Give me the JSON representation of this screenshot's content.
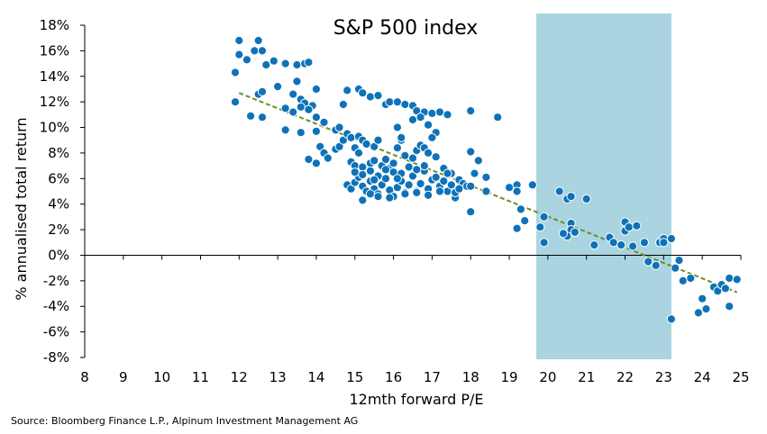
{
  "chart_data": {
    "type": "scatter",
    "title": "S&P 500 index",
    "xlabel": "12mth forward P/E",
    "ylabel": "% annualised total return",
    "xlim": [
      8,
      25
    ],
    "ylim": [
      -8,
      18
    ],
    "x_ticks": [
      8,
      9,
      10,
      11,
      12,
      13,
      14,
      15,
      16,
      17,
      18,
      19,
      20,
      21,
      22,
      23,
      24,
      25
    ],
    "y_ticks": [
      18,
      16,
      14,
      12,
      10,
      8,
      6,
      4,
      2,
      0,
      -2,
      -4,
      -6,
      -8
    ],
    "y_tick_suffix": "%",
    "highlight_band": {
      "x_from": 19.7,
      "x_to": 23.2,
      "color": "#a9d4e0"
    },
    "marker_color": "#0f72b8",
    "trendline": {
      "x1": 12,
      "y1": 12.7,
      "x2": 24.9,
      "y2": -2.9,
      "color": "#6b8e23",
      "style": "dashed"
    },
    "points": [
      [
        12.0,
        16.8
      ],
      [
        12.0,
        15.7
      ],
      [
        11.9,
        14.3
      ],
      [
        11.9,
        12.0
      ],
      [
        12.2,
        15.3
      ],
      [
        12.4,
        16.0
      ],
      [
        12.5,
        16.8
      ],
      [
        12.6,
        16.0
      ],
      [
        12.7,
        14.9
      ],
      [
        12.9,
        15.2
      ],
      [
        12.3,
        10.9
      ],
      [
        12.6,
        10.8
      ],
      [
        12.5,
        12.6
      ],
      [
        12.6,
        12.8
      ],
      [
        13.0,
        13.2
      ],
      [
        13.2,
        15.0
      ],
      [
        13.5,
        14.9
      ],
      [
        13.7,
        15.0
      ],
      [
        13.8,
        15.1
      ],
      [
        13.5,
        13.6
      ],
      [
        13.2,
        11.5
      ],
      [
        13.4,
        11.2
      ],
      [
        13.4,
        12.6
      ],
      [
        13.6,
        12.2
      ],
      [
        13.7,
        11.9
      ],
      [
        13.9,
        11.7
      ],
      [
        14.0,
        13.0
      ],
      [
        13.6,
        11.6
      ],
      [
        13.8,
        11.4
      ],
      [
        14.0,
        10.8
      ],
      [
        13.2,
        9.8
      ],
      [
        13.6,
        9.6
      ],
      [
        13.8,
        7.5
      ],
      [
        14.0,
        7.2
      ],
      [
        14.0,
        9.7
      ],
      [
        14.2,
        10.4
      ],
      [
        14.5,
        9.8
      ],
      [
        14.6,
        10.0
      ],
      [
        14.7,
        11.8
      ],
      [
        14.8,
        12.9
      ],
      [
        15.1,
        13.0
      ],
      [
        15.2,
        12.7
      ],
      [
        15.4,
        12.4
      ],
      [
        15.6,
        12.5
      ],
      [
        15.8,
        11.8
      ],
      [
        15.9,
        12.0
      ],
      [
        16.1,
        12.0
      ],
      [
        16.3,
        11.8
      ],
      [
        16.5,
        11.7
      ],
      [
        16.6,
        11.3
      ],
      [
        16.8,
        11.2
      ],
      [
        17.0,
        11.1
      ],
      [
        17.2,
        11.2
      ],
      [
        17.4,
        11.0
      ],
      [
        16.7,
        10.8
      ],
      [
        16.9,
        10.2
      ],
      [
        17.1,
        9.6
      ],
      [
        18.0,
        11.3
      ],
      [
        18.7,
        10.8
      ],
      [
        16.5,
        10.6
      ],
      [
        14.1,
        8.5
      ],
      [
        14.2,
        8.0
      ],
      [
        14.3,
        7.6
      ],
      [
        14.5,
        8.3
      ],
      [
        14.6,
        8.5
      ],
      [
        14.7,
        9.0
      ],
      [
        14.8,
        9.5
      ],
      [
        14.9,
        9.2
      ],
      [
        15.1,
        9.3
      ],
      [
        15.2,
        9.0
      ],
      [
        15.3,
        8.7
      ],
      [
        15.5,
        8.5
      ],
      [
        15.6,
        9.0
      ],
      [
        15.0,
        8.4
      ],
      [
        15.1,
        8.0
      ],
      [
        14.9,
        7.3
      ],
      [
        15.0,
        7.0
      ],
      [
        15.2,
        6.9
      ],
      [
        15.4,
        7.2
      ],
      [
        15.5,
        7.4
      ],
      [
        15.7,
        7.0
      ],
      [
        15.8,
        7.5
      ],
      [
        15.9,
        6.8
      ],
      [
        16.0,
        7.2
      ],
      [
        16.1,
        8.4
      ],
      [
        16.2,
        9.0
      ],
      [
        16.1,
        10.0
      ],
      [
        16.2,
        9.2
      ],
      [
        16.3,
        7.8
      ],
      [
        16.5,
        7.6
      ],
      [
        16.6,
        8.2
      ],
      [
        16.7,
        8.6
      ],
      [
        16.8,
        8.4
      ],
      [
        16.9,
        8.0
      ],
      [
        17.0,
        9.2
      ],
      [
        17.1,
        7.7
      ],
      [
        17.3,
        6.8
      ],
      [
        17.5,
        6.4
      ],
      [
        17.7,
        5.9
      ],
      [
        17.8,
        5.6
      ],
      [
        18.0,
        8.1
      ],
      [
        18.2,
        7.4
      ],
      [
        18.1,
        6.4
      ],
      [
        18.4,
        6.1
      ],
      [
        17.9,
        5.4
      ],
      [
        18.0,
        5.4
      ],
      [
        18.4,
        5.0
      ],
      [
        18.0,
        3.4
      ],
      [
        17.6,
        4.5
      ],
      [
        17.4,
        5.0
      ],
      [
        14.8,
        5.5
      ],
      [
        14.9,
        5.2
      ],
      [
        15.0,
        5.7
      ],
      [
        15.1,
        6.1
      ],
      [
        15.2,
        5.4
      ],
      [
        15.3,
        5.0
      ],
      [
        15.4,
        5.8
      ],
      [
        15.5,
        5.2
      ],
      [
        15.6,
        4.8
      ],
      [
        15.7,
        5.5
      ],
      [
        15.8,
        6.0
      ],
      [
        15.9,
        5.1
      ],
      [
        16.0,
        4.6
      ],
      [
        16.1,
        5.3
      ],
      [
        16.2,
        5.8
      ],
      [
        16.3,
        4.9
      ],
      [
        16.4,
        5.5
      ],
      [
        16.5,
        6.2
      ],
      [
        16.6,
        5.0
      ],
      [
        16.7,
        5.6
      ],
      [
        16.8,
        6.6
      ],
      [
        16.9,
        5.2
      ],
      [
        17.0,
        5.9
      ],
      [
        17.1,
        6.1
      ],
      [
        17.2,
        5.4
      ],
      [
        17.3,
        5.8
      ],
      [
        17.4,
        6.4
      ],
      [
        17.5,
        5.5
      ],
      [
        17.6,
        4.9
      ],
      [
        17.7,
        5.2
      ],
      [
        15.0,
        6.5
      ],
      [
        15.2,
        6.3
      ],
      [
        15.4,
        6.6
      ],
      [
        15.6,
        6.2
      ],
      [
        15.8,
        6.7
      ],
      [
        16.0,
        6.5
      ],
      [
        16.2,
        6.4
      ],
      [
        16.4,
        6.9
      ],
      [
        16.6,
        6.7
      ],
      [
        16.8,
        7.0
      ],
      [
        15.2,
        4.3
      ],
      [
        15.4,
        4.8
      ],
      [
        15.6,
        4.6
      ],
      [
        15.9,
        4.5
      ],
      [
        16.3,
        4.8
      ],
      [
        16.6,
        4.9
      ],
      [
        16.9,
        4.7
      ],
      [
        17.2,
        5.0
      ],
      [
        15.5,
        5.9
      ],
      [
        16.1,
        6.0
      ],
      [
        19.0,
        5.3
      ],
      [
        19.2,
        5.5
      ],
      [
        19.2,
        5.0
      ],
      [
        19.6,
        5.5
      ],
      [
        19.3,
        3.6
      ],
      [
        19.4,
        2.7
      ],
      [
        19.2,
        2.1
      ],
      [
        19.8,
        2.2
      ],
      [
        19.9,
        3.0
      ],
      [
        19.9,
        1.0
      ],
      [
        20.3,
        5.0
      ],
      [
        20.5,
        4.4
      ],
      [
        20.6,
        4.6
      ],
      [
        20.6,
        2.5
      ],
      [
        20.6,
        2.0
      ],
      [
        20.5,
        1.5
      ],
      [
        20.4,
        1.7
      ],
      [
        20.7,
        1.8
      ],
      [
        21.0,
        4.4
      ],
      [
        21.2,
        0.8
      ],
      [
        21.6,
        1.4
      ],
      [
        21.7,
        1.0
      ],
      [
        21.9,
        0.8
      ],
      [
        22.0,
        1.9
      ],
      [
        22.0,
        2.6
      ],
      [
        22.1,
        2.2
      ],
      [
        22.2,
        0.7
      ],
      [
        22.3,
        2.3
      ],
      [
        22.5,
        1.0
      ],
      [
        22.6,
        -0.5
      ],
      [
        22.8,
        -0.8
      ],
      [
        22.9,
        1.0
      ],
      [
        23.0,
        1.3
      ],
      [
        23.0,
        1.0
      ],
      [
        23.2,
        1.3
      ],
      [
        23.4,
        -0.4
      ],
      [
        23.3,
        -1.0
      ],
      [
        23.5,
        -2.0
      ],
      [
        23.7,
        -1.8
      ],
      [
        23.2,
        -5.0
      ],
      [
        24.0,
        -3.4
      ],
      [
        23.9,
        -4.5
      ],
      [
        24.1,
        -4.2
      ],
      [
        24.3,
        -2.5
      ],
      [
        24.4,
        -2.8
      ],
      [
        24.5,
        -2.3
      ],
      [
        24.6,
        -2.6
      ],
      [
        24.7,
        -1.8
      ],
      [
        24.9,
        -1.9
      ],
      [
        24.7,
        -4.0
      ]
    ]
  },
  "footer": {
    "source": "Source: Bloomberg Finance L.P., Alpinum Investment Management AG"
  }
}
